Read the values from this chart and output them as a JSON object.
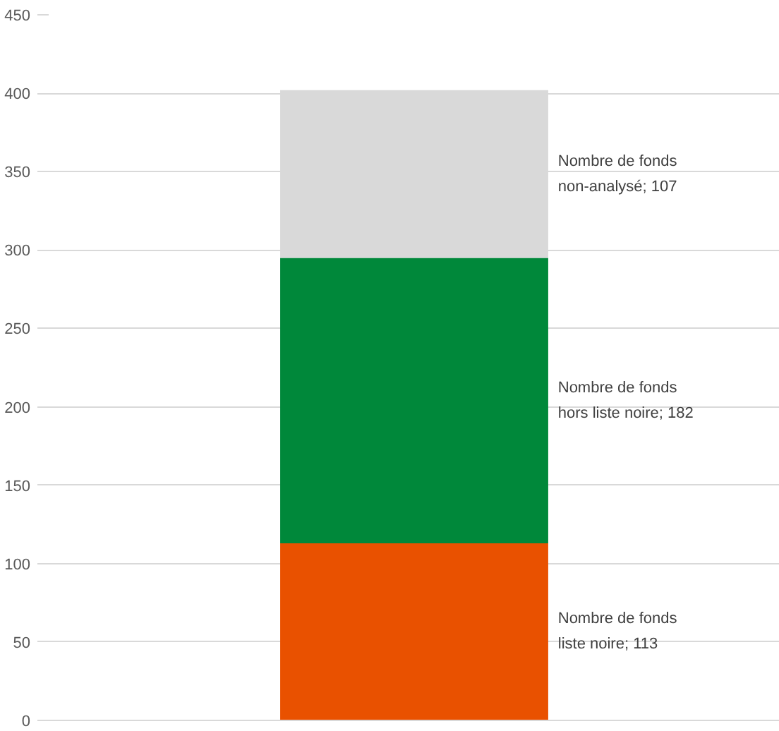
{
  "chart_data": {
    "type": "bar",
    "stacked": true,
    "categories": [
      null
    ],
    "series": [
      {
        "color": "#e95100",
        "values": [
          113
        ]
      },
      {
        "color": "#00883a",
        "values": [
          182
        ]
      },
      {
        "color": "#d9d9d9",
        "values": [
          107
        ]
      }
    ],
    "annotations": [
      "Nombre de fonds\nliste noire; 113",
      "Nombre de fonds\nhors liste noire; 182",
      "Nombre de fonds\nnon-analysé; 107"
    ],
    "ylim": [
      0,
      450
    ],
    "yticks": [
      0,
      50,
      100,
      150,
      200,
      250,
      300,
      350,
      400,
      450
    ],
    "grid": "y"
  }
}
